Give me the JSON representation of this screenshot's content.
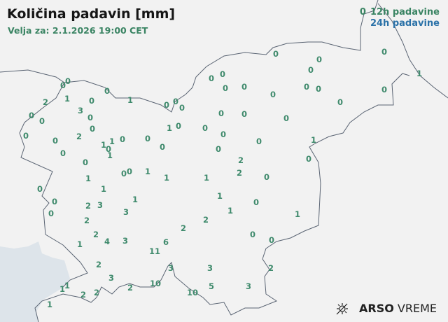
{
  "header": {
    "title": "Količina padavin [mm]",
    "valid_for": "Velja za: 2.1.2026 19:00 CET"
  },
  "legend": {
    "sample_value": "0",
    "items": [
      {
        "label": "12h padavine",
        "color": "#3a8463"
      },
      {
        "label": "24h padavine",
        "color": "#2b72a8"
      }
    ]
  },
  "logo": {
    "brand": "ARSO",
    "product": "VREME",
    "icon": "sun-cloud-icon"
  },
  "colors": {
    "land": "#f2f2f2",
    "sea": "#dde4ea",
    "border": "#5a6473",
    "value": "#3f8a6c"
  },
  "stations": [
    "0",
    "0",
    "2",
    "1",
    "0",
    "0",
    "1",
    "3",
    "0",
    "0",
    "0",
    "0",
    "2",
    "0",
    "0",
    "1",
    "1",
    "0",
    "1",
    "0",
    "0",
    "0",
    "0",
    "0",
    "0",
    "1",
    "0",
    "0",
    "0",
    "0",
    "0",
    "0",
    "0",
    "0",
    "0",
    "0",
    "0",
    "0",
    "0",
    "0",
    "1",
    "0",
    "0",
    "0",
    "0",
    "0",
    "0",
    "0",
    "1",
    "0",
    "2",
    "2",
    "0",
    "0",
    "0",
    "0",
    "0",
    "1",
    "1",
    "1",
    "1",
    "1",
    "0",
    "0",
    "0",
    "1",
    "2",
    "3",
    "3",
    "2",
    "1",
    "1",
    "0",
    "1",
    "2",
    "4",
    "3",
    "1",
    "2",
    "2",
    "6",
    "11",
    "0",
    "0",
    "2",
    "3",
    "3",
    "3",
    "2",
    "1",
    "1",
    "2",
    "2",
    "2",
    "10",
    "10",
    "5",
    "3",
    "1"
  ]
}
